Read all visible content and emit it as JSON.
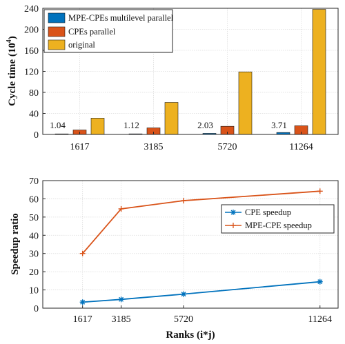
{
  "chart_data": [
    {
      "type": "bar",
      "title": "",
      "xlabel": "",
      "ylabel": "Cycle time (10",
      "ylabel_superscript": "4",
      "ylabel_suffix": ")",
      "ylim": [
        0,
        240
      ],
      "yticks": [
        "0",
        "40",
        "80",
        "120",
        "160",
        "200",
        "240"
      ],
      "grid": true,
      "legend_position": "top-left",
      "categories": [
        "1617",
        "3185",
        "5720",
        "11264"
      ],
      "series": [
        {
          "name": "MPE-CPEs multilevel parallel",
          "color": "#0072BD",
          "values": [
            1.04,
            1.12,
            2.03,
            3.71
          ]
        },
        {
          "name": "CPEs parallel",
          "color": "#D95319",
          "values": [
            8.5,
            12.5,
            15.5,
            16.5
          ]
        },
        {
          "name": "original",
          "color": "#EDB120",
          "values": [
            31,
            61,
            119,
            238
          ]
        }
      ],
      "data_labels": [
        "1.04",
        "1.12",
        "2.03",
        "3.71"
      ]
    },
    {
      "type": "line",
      "title": "",
      "xlabel": "Ranks (i*j)",
      "ylabel": "Speedup ratio",
      "ylim": [
        0,
        70
      ],
      "yticks": [
        "0",
        "10",
        "20",
        "30",
        "40",
        "50",
        "60",
        "70"
      ],
      "x": [
        1617,
        3185,
        5720,
        11264
      ],
      "xlim": [
        0,
        12000
      ],
      "xticks": [
        "1617",
        "3185",
        "5720",
        "11264"
      ],
      "grid": true,
      "legend_position": "right",
      "series": [
        {
          "name": "CPE speedup",
          "color": "#0072BD",
          "marker": "asterisk",
          "values": [
            3.3,
            4.8,
            7.7,
            14.5
          ]
        },
        {
          "name": "MPE-CPE speedup",
          "color": "#D95319",
          "marker": "plus",
          "values": [
            30,
            54.5,
            59,
            64.2
          ]
        }
      ]
    }
  ]
}
